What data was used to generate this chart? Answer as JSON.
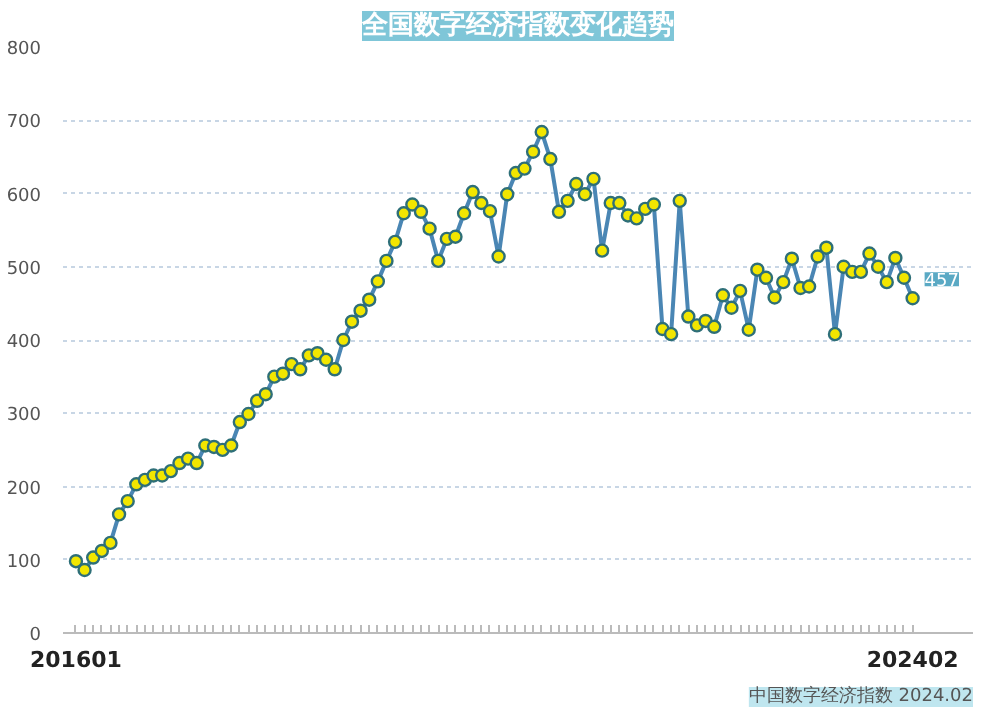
{
  "chart_data": {
    "type": "line",
    "title": "全国数字经济指数变化趋势",
    "categories": [
      "201601",
      null,
      null,
      null,
      null,
      null,
      null,
      null,
      null,
      null,
      null,
      null,
      null,
      null,
      null,
      null,
      null,
      null,
      null,
      null,
      null,
      null,
      null,
      null,
      null,
      null,
      null,
      null,
      null,
      null,
      null,
      null,
      null,
      null,
      null,
      null,
      null,
      null,
      null,
      null,
      null,
      null,
      null,
      null,
      null,
      null,
      null,
      null,
      null,
      null,
      null,
      null,
      null,
      null,
      null,
      null,
      null,
      null,
      null,
      null,
      null,
      null,
      null,
      null,
      null,
      null,
      null,
      null,
      null,
      null,
      null,
      null,
      null,
      null,
      null,
      null,
      null,
      null,
      null,
      null,
      null,
      null,
      null,
      null,
      null,
      null,
      null,
      null,
      null,
      null,
      null,
      null,
      null,
      null,
      null,
      null,
      null,
      "202402"
    ],
    "series": [
      {
        "color": "#4a86b4",
        "values": [
          98,
          86,
          103,
          112,
          123,
          162,
          180,
          203,
          209,
          215,
          215,
          221,
          232,
          238,
          232,
          256,
          254,
          250,
          256,
          288,
          299,
          317,
          326,
          350,
          354,
          367,
          360,
          379,
          382,
          373,
          360,
          400,
          425,
          440,
          455,
          480,
          508,
          534,
          573,
          585,
          575,
          552,
          508,
          538,
          541,
          573,
          602,
          587,
          576,
          514,
          599,
          628,
          634,
          657,
          684,
          647,
          575,
          590,
          613,
          599,
          620,
          522,
          587,
          587,
          570,
          566,
          579,
          585,
          415,
          408,
          590,
          432,
          420,
          426,
          418,
          461,
          444,
          467,
          414,
          496,
          485,
          458,
          479,
          511,
          471,
          473,
          514,
          526,
          408,
          500,
          493,
          493,
          518,
          500,
          479,
          512,
          485,
          457
        ]
      }
    ],
    "ylim": [
      0,
      800
    ],
    "yticks": [
      0,
      100,
      200,
      300,
      400,
      500,
      600,
      700,
      800
    ],
    "grid": "y",
    "marker": "circle",
    "line_style": "solid",
    "annotations": [
      {
        "text": "457",
        "x": "202402",
        "y": 457
      },
      "中国数字经济指数 2024.02"
    ]
  }
}
